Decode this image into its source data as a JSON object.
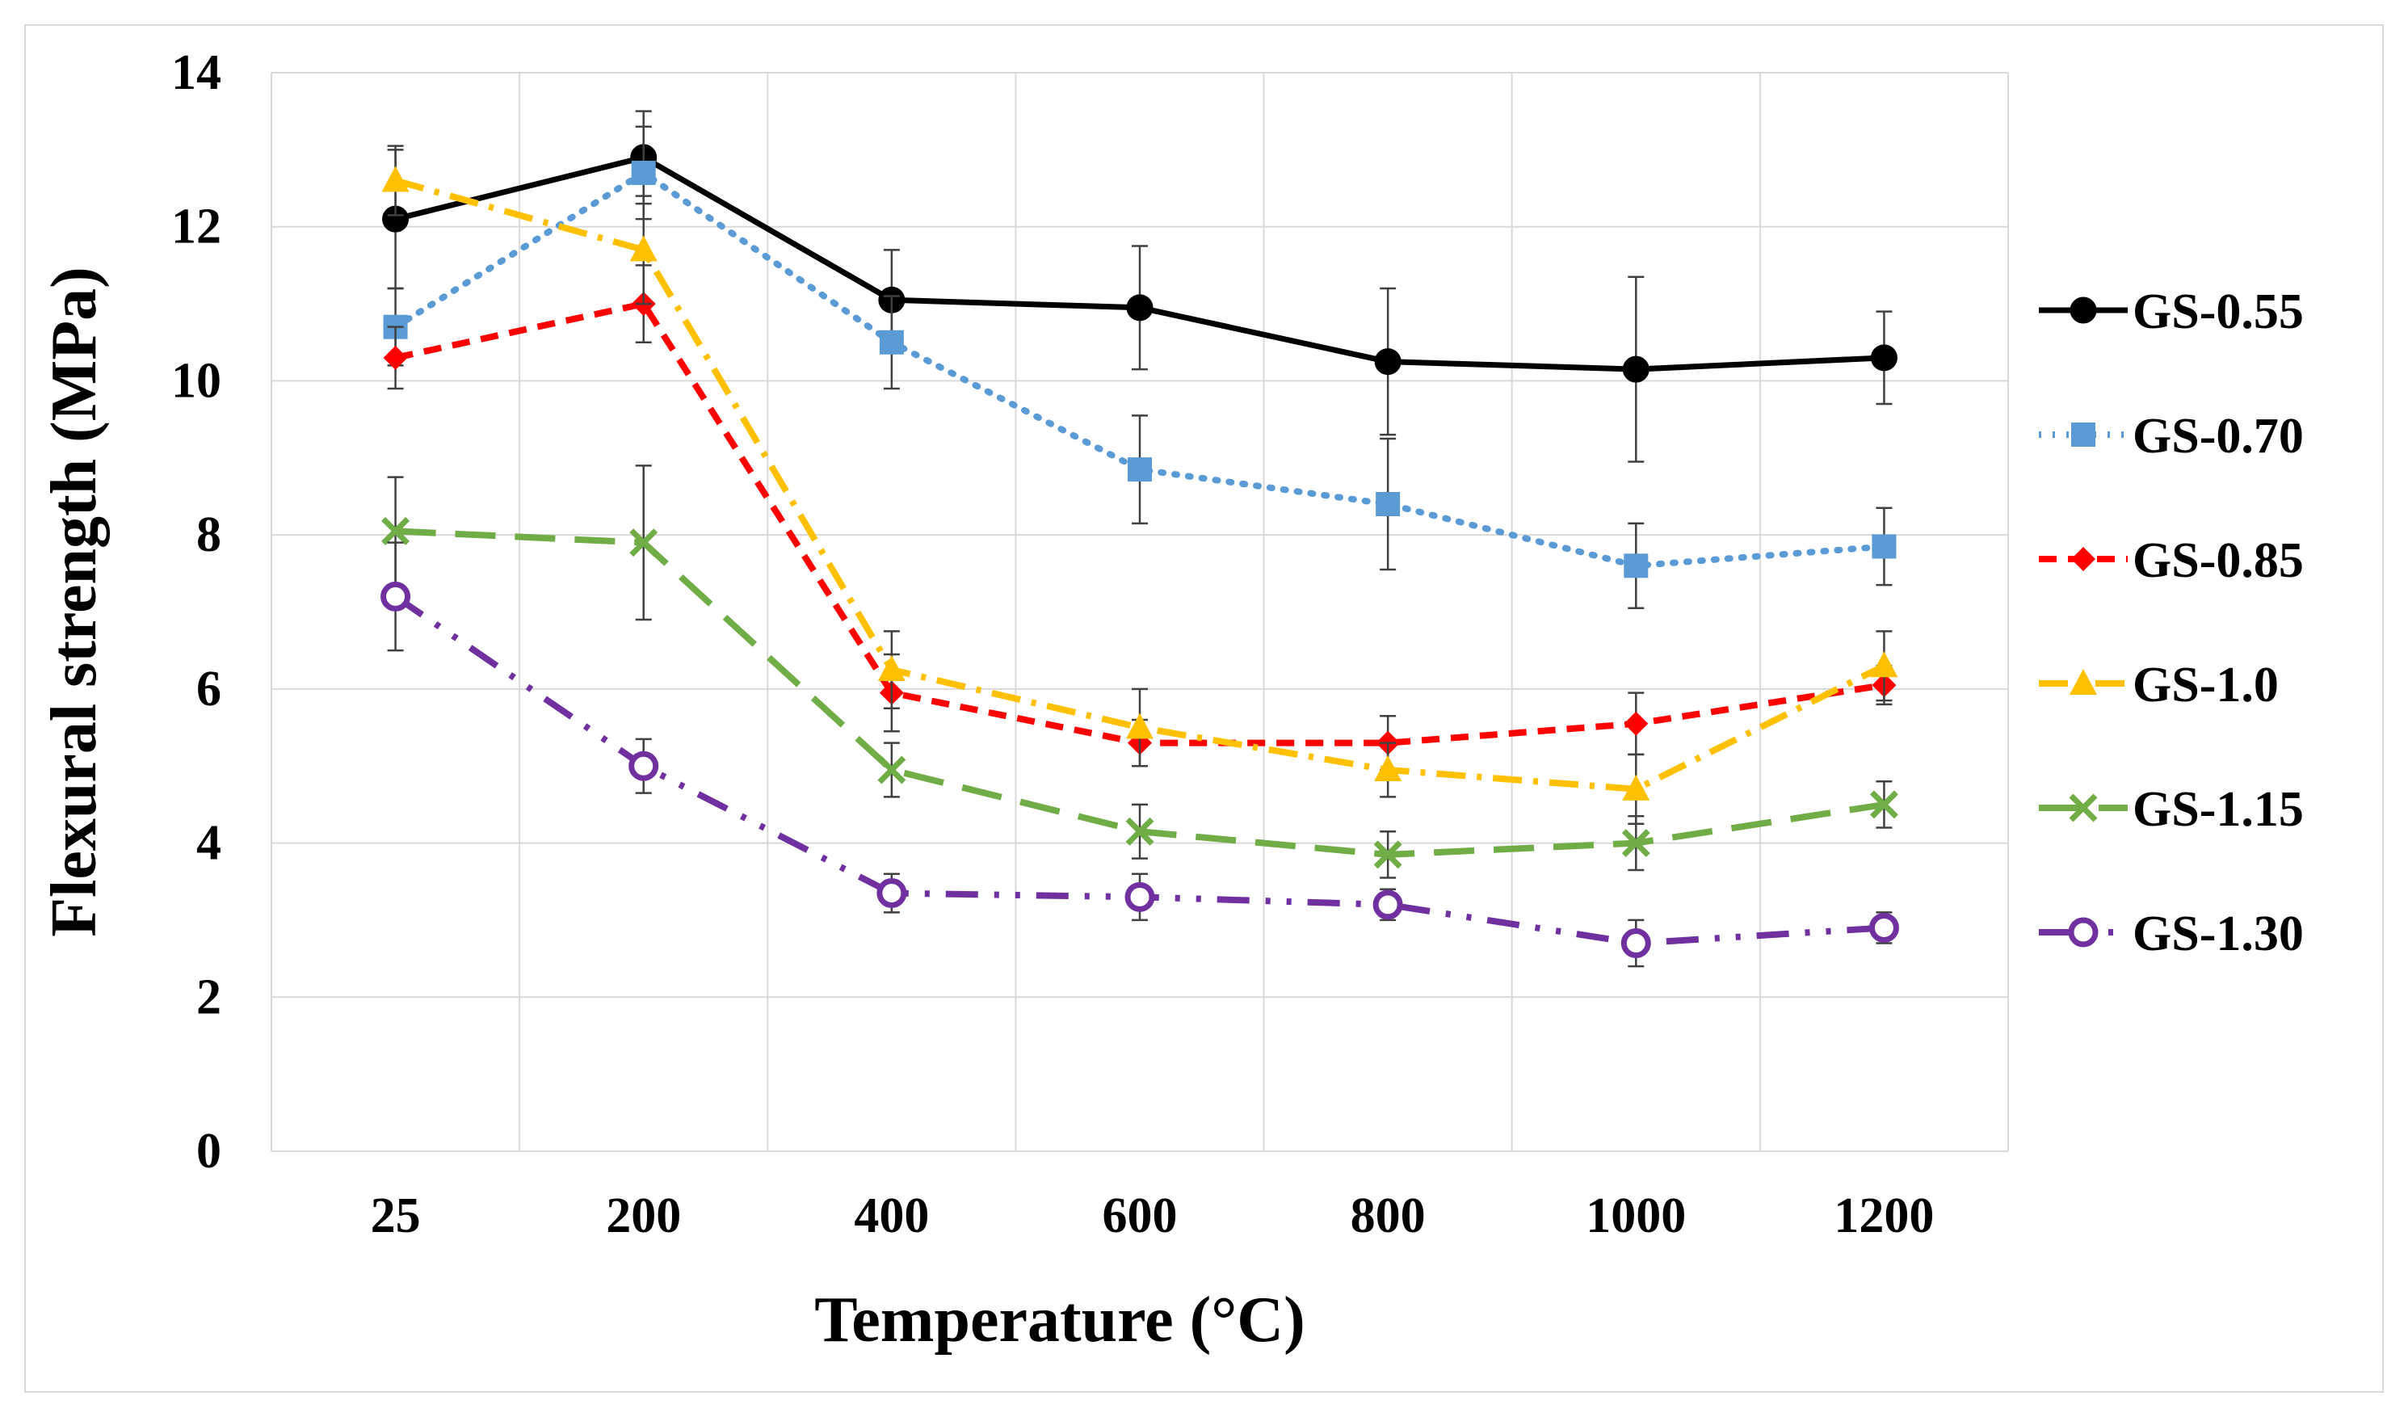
{
  "chart_data": {
    "type": "line",
    "title": "",
    "xlabel": "Temperature (°C)",
    "ylabel": "Flexural strength (MPa)",
    "categories": [
      "25",
      "200",
      "400",
      "600",
      "800",
      "1000",
      "1200"
    ],
    "ylim": [
      0,
      14
    ],
    "yticks": [
      "0",
      "2",
      "4",
      "6",
      "8",
      "10",
      "12",
      "14"
    ],
    "grid": true,
    "legend_position": "right",
    "series": [
      {
        "name": "GS-0.55",
        "color": "#000000",
        "marker": "circle-filled",
        "dash": "solid",
        "values": [
          12.1,
          12.9,
          11.05,
          10.95,
          10.25,
          10.15,
          10.3
        ],
        "errors": [
          0.9,
          0.6,
          0.65,
          0.8,
          0.95,
          1.2,
          0.6
        ]
      },
      {
        "name": "GS-0.70",
        "color": "#5b9bd5",
        "marker": "square",
        "dash": "dot",
        "values": [
          10.7,
          12.7,
          10.5,
          8.85,
          8.4,
          7.6,
          7.85
        ],
        "errors": [
          0.5,
          0.6,
          0.6,
          0.7,
          0.85,
          0.55,
          0.5
        ]
      },
      {
        "name": "GS-0.85",
        "color": "#ff0000",
        "marker": "diamond",
        "dash": "dash",
        "values": [
          10.3,
          11.0,
          5.95,
          5.3,
          5.3,
          5.55,
          6.05
        ],
        "errors": [
          0.4,
          0.5,
          0.5,
          0.3,
          0.35,
          0.4,
          0.25
        ]
      },
      {
        "name": "GS-1.0",
        "color": "#ffc000",
        "marker": "triangle",
        "dash": "dashdot",
        "values": [
          12.6,
          11.7,
          6.25,
          5.5,
          4.95,
          4.7,
          6.3
        ],
        "errors": [
          0.45,
          0.7,
          0.5,
          0.5,
          0.35,
          0.45,
          0.45
        ]
      },
      {
        "name": "GS-1.15",
        "color": "#70ad47",
        "marker": "x",
        "dash": "longdash",
        "values": [
          8.05,
          7.9,
          4.95,
          4.15,
          3.85,
          4.0,
          4.5
        ],
        "errors": [
          0.7,
          1.0,
          0.35,
          0.35,
          0.3,
          0.35,
          0.3
        ]
      },
      {
        "name": "GS-1.30",
        "color": "#7030a0",
        "marker": "circle-open",
        "dash": "dashdotdot",
        "values": [
          7.2,
          5.0,
          3.35,
          3.3,
          3.2,
          2.7,
          2.9
        ],
        "errors": [
          0.7,
          0.35,
          0.25,
          0.3,
          0.2,
          0.3,
          0.2
        ]
      }
    ]
  }
}
